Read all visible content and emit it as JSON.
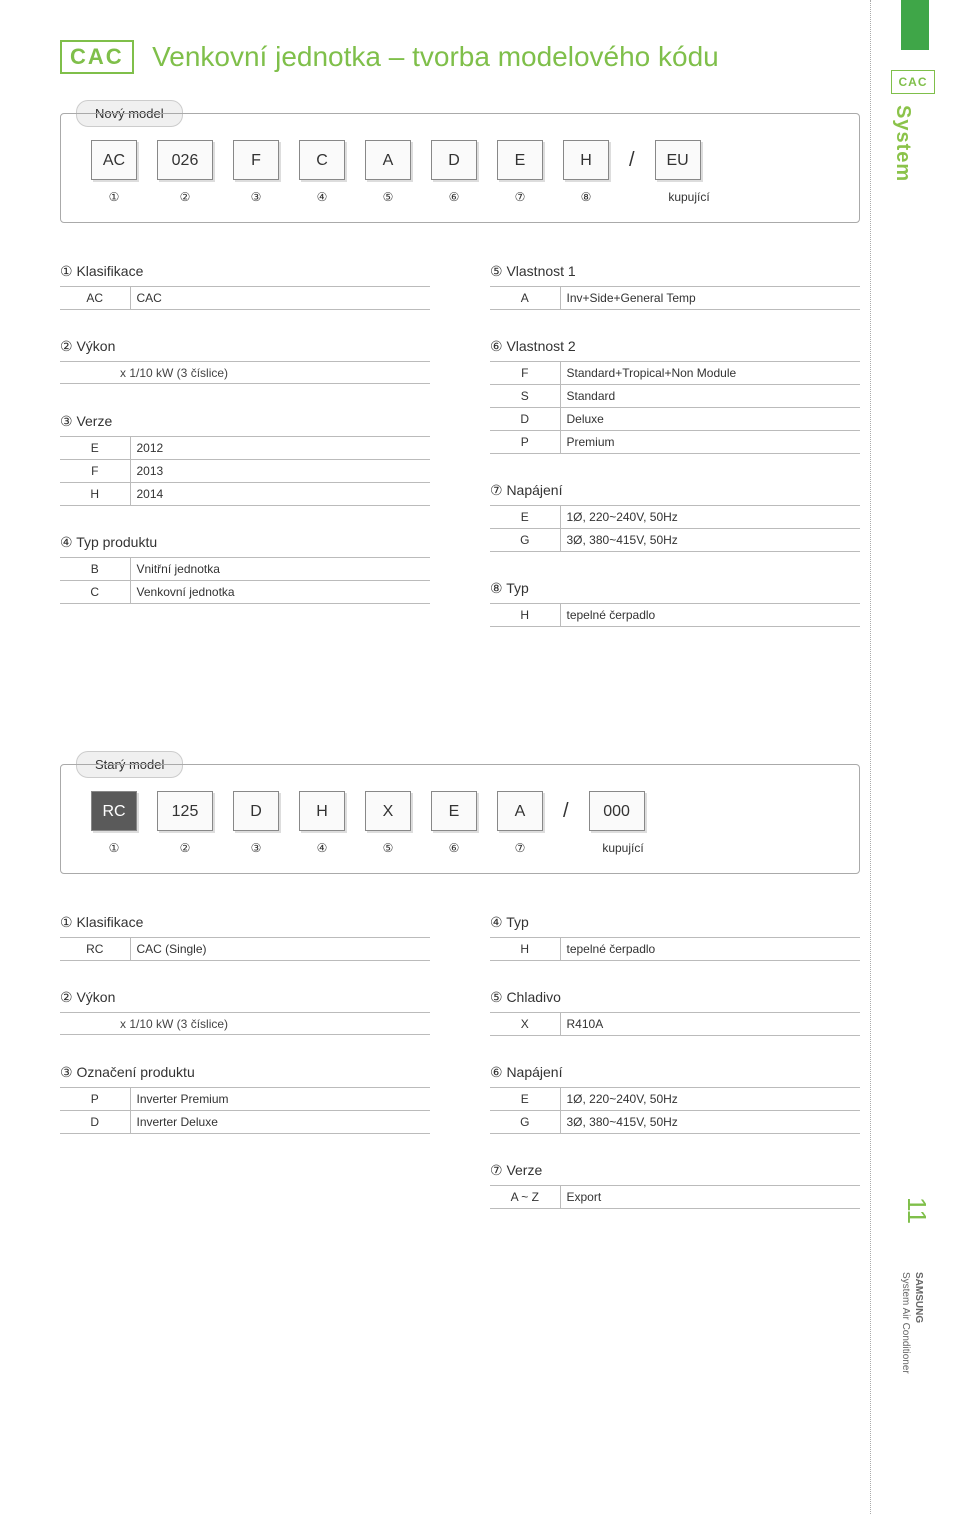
{
  "brand_logo": "CAC",
  "page_title": "Venkovní jednotka – tvorba modelového kódu",
  "side": {
    "logo": "CAC",
    "system": "System",
    "page": "11",
    "brand": "SAMSUNG",
    "brand_sub": "System Air Conditioner"
  },
  "new_model": {
    "label": "Nový model",
    "cells": [
      "AC",
      "026",
      "F",
      "C",
      "A",
      "D",
      "E",
      "H",
      "/",
      "EU"
    ],
    "indices": [
      "①",
      "②",
      "③",
      "④",
      "⑤",
      "⑥",
      "⑦",
      "⑧"
    ],
    "buyer": "kupující"
  },
  "old_model": {
    "label": "Starý model",
    "cells": [
      "RC",
      "125",
      "D",
      "H",
      "X",
      "E",
      "A",
      "/",
      "000"
    ],
    "indices": [
      "①",
      "②",
      "③",
      "④",
      "⑤",
      "⑥",
      "⑦"
    ],
    "buyer": "kupující"
  },
  "defs1_left": [
    {
      "title": "① Klasifikace",
      "rows": [
        [
          "AC",
          "CAC"
        ]
      ]
    },
    {
      "title": "② Výkon",
      "sub": "x 1/10 kW (3 číslice)",
      "rows": []
    },
    {
      "title": "③ Verze",
      "rows": [
        [
          "E",
          "2012"
        ],
        [
          "F",
          "2013"
        ],
        [
          "H",
          "2014"
        ]
      ]
    },
    {
      "title": "④ Typ produktu",
      "rows": [
        [
          "B",
          "Vnitřní jednotka"
        ],
        [
          "C",
          "Venkovní jednotka"
        ]
      ]
    }
  ],
  "defs1_right": [
    {
      "title": "⑤ Vlastnost 1",
      "rows": [
        [
          "A",
          "Inv+Side+General Temp"
        ]
      ]
    },
    {
      "title": "⑥ Vlastnost 2",
      "rows": [
        [
          "F",
          "Standard+Tropical+Non Module"
        ],
        [
          "S",
          "Standard"
        ],
        [
          "D",
          "Deluxe"
        ],
        [
          "P",
          "Premium"
        ]
      ]
    },
    {
      "title": "⑦ Napájení",
      "rows": [
        [
          "E",
          "1Ø, 220~240V, 50Hz"
        ],
        [
          "G",
          "3Ø, 380~415V, 50Hz"
        ]
      ]
    },
    {
      "title": "⑧ Typ",
      "rows": [
        [
          "H",
          "tepelné čerpadlo"
        ]
      ]
    }
  ],
  "defs2_left": [
    {
      "title": "① Klasifikace",
      "rows": [
        [
          "RC",
          "CAC (Single)"
        ]
      ]
    },
    {
      "title": "② Výkon",
      "sub": "x 1/10 kW (3 číslice)",
      "rows": []
    },
    {
      "title": "③ Označení produktu",
      "rows": [
        [
          "P",
          "Inverter Premium"
        ],
        [
          "D",
          "Inverter Deluxe"
        ]
      ]
    }
  ],
  "defs2_right": [
    {
      "title": "④ Typ",
      "rows": [
        [
          "H",
          "tepelné čerpadlo"
        ]
      ]
    },
    {
      "title": "⑤ Chladivo",
      "rows": [
        [
          "X",
          "R410A"
        ]
      ]
    },
    {
      "title": "⑥ Napájení",
      "rows": [
        [
          "E",
          "1Ø, 220~240V, 50Hz"
        ],
        [
          "G",
          "3Ø, 380~415V, 50Hz"
        ]
      ]
    },
    {
      "title": "⑦ Verze",
      "rows": [
        [
          "A ~ Z",
          "Export"
        ]
      ]
    }
  ]
}
